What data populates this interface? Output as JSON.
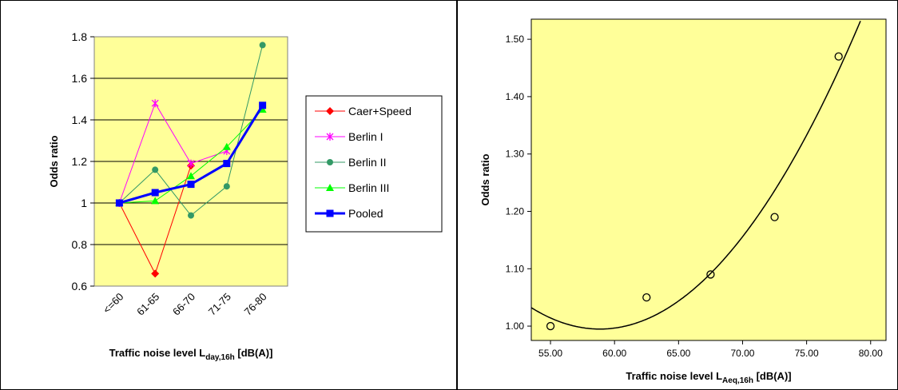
{
  "chart_data": [
    {
      "type": "line",
      "categories": [
        "<=60",
        "61-65",
        "66-70",
        "71-75",
        "76-80"
      ],
      "ylim": [
        0.6,
        1.8
      ],
      "yticks": [
        "0.6",
        "0.8",
        "1",
        "1.2",
        "1.4",
        "1.6",
        "1.8"
      ],
      "ylabel": "Odds ratio",
      "xlabel": {
        "main": "Traffic noise level L",
        "sub": "day,16h",
        "unit": " [dB(A)]"
      },
      "grid": true,
      "legend_position": "right",
      "plot_background": "#ffff99",
      "series": [
        {
          "name": "Caer+Speed",
          "color": "#ff0000",
          "marker": "diamond",
          "values": [
            1.0,
            0.66,
            1.18,
            null,
            null
          ]
        },
        {
          "name": "Berlin I",
          "color": "#ff00ff",
          "marker": "asterisk",
          "values": [
            1.0,
            1.48,
            1.19,
            1.25,
            null
          ]
        },
        {
          "name": "Berlin II",
          "color": "#339966",
          "marker": "circle",
          "values": [
            1.0,
            1.16,
            0.94,
            1.08,
            1.76
          ]
        },
        {
          "name": "Berlin III",
          "color": "#00ff00",
          "marker": "triangle",
          "values": [
            1.0,
            1.01,
            1.13,
            1.27,
            1.45
          ]
        },
        {
          "name": "Pooled",
          "color": "#0000ff",
          "marker": "square",
          "values": [
            1.0,
            1.05,
            1.09,
            1.19,
            1.47
          ]
        }
      ]
    },
    {
      "type": "scatter",
      "x": [
        55.0,
        62.5,
        67.5,
        72.5,
        77.5
      ],
      "y": [
        1.0,
        1.05,
        1.09,
        1.19,
        1.47
      ],
      "xlim": [
        53.5,
        81.2
      ],
      "ylim": [
        0.975,
        1.535
      ],
      "xticks": [
        "55.00",
        "60.00",
        "65.00",
        "70.00",
        "75.00",
        "80.00"
      ],
      "yticks": [
        "1.00",
        "1.10",
        "1.20",
        "1.30",
        "1.40",
        "1.50"
      ],
      "ylabel": "Odds ratio",
      "xlabel": {
        "main": "Traffic noise level L",
        "sub": "Aeq,16h",
        "unit": " [dB(A)]"
      },
      "fit": "quadratic",
      "grid": false,
      "plot_background": "#ffff99"
    }
  ]
}
